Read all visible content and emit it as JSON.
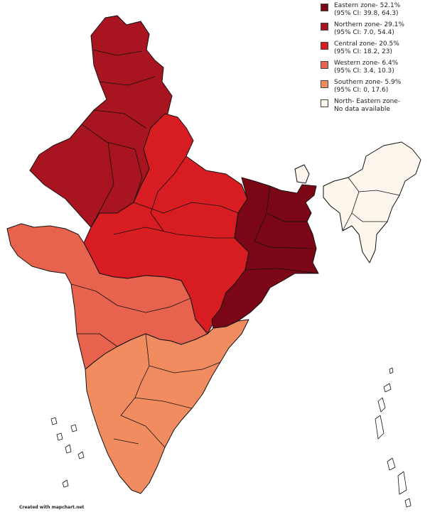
{
  "legend": [
    {
      "line1": "Eastern zone- 52.1%",
      "line2": "(95% CI: 39.8, 64.3)",
      "color": "#7b0716"
    },
    {
      "line1": "Northern zone- 29.1%",
      "line2": "(95% CI: 7.0, 54.4)",
      "color": "#a8141f"
    },
    {
      "line1": "Central zone- 20.5%",
      "line2": "(95% CI: 18.2, 23)",
      "color": "#d71c22"
    },
    {
      "line1": "Western zone- 6.4%",
      "line2": "(95% CI: 3.4, 10.3)",
      "color": "#e8634d"
    },
    {
      "line1": "Southern zone- 5.9%",
      "line2": "(95% CI: 0, 17.6)",
      "color": "#f18c60"
    },
    {
      "line1": "North- Eastern zone-",
      "line2": "No data available",
      "color": "#fdf6ec"
    }
  ],
  "credit": "Created with mapchart.net"
}
